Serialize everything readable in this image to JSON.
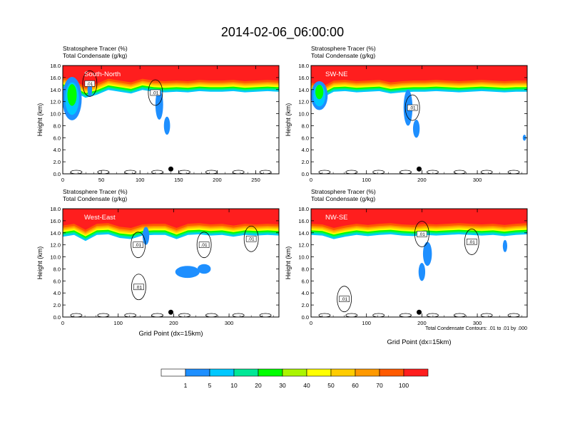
{
  "figure": {
    "title": "2014-02-06_06:00:00",
    "footnote": "Total Condensate Contours: .01 to .01 by .000"
  },
  "chart_data": [
    {
      "type": "heatmap",
      "panel_label": "South-North",
      "field_label": "Stratosphere Tracer   (%)",
      "contour_label": "Total Condensate   (g/kg)",
      "ylabel": "Height (km)",
      "xlabel": "",
      "xlim": [
        0,
        280
      ],
      "ylim": [
        0,
        18
      ],
      "xticks": [
        0,
        50,
        100,
        150,
        200,
        250
      ],
      "yticks": [
        "0.0",
        "2.0",
        "4.0",
        "6.0",
        "8.0",
        "10.0",
        "12.0",
        "14.0",
        "16.0",
        "18.0"
      ],
      "tracer_top_km": [
        16.0,
        15.5,
        14.5,
        15.0,
        15.8,
        15.5,
        15.2,
        15.8,
        15.5,
        15.4,
        15.5,
        15.4,
        15.6,
        15.5,
        15.5,
        15.6,
        15.4,
        15.5,
        15.6,
        15.5
      ],
      "tracer_blobs": [
        {
          "x": 12,
          "y": 12.5,
          "rx": 10,
          "ry": 3,
          "level": 20
        },
        {
          "x": 35,
          "y": 14.0,
          "rx": 3,
          "ry": 1.2,
          "level": 5
        },
        {
          "x": 125,
          "y": 11.5,
          "rx": 5,
          "ry": 2.5,
          "level": 5
        },
        {
          "x": 135,
          "y": 8.0,
          "rx": 4,
          "ry": 1.5,
          "level": 5
        }
      ],
      "contour_labels": [
        {
          "x": 35,
          "y": 15.0,
          "text": ".01"
        },
        {
          "x": 120,
          "y": 13.5,
          "text": ".01"
        }
      ],
      "marker_x": 140
    },
    {
      "type": "heatmap",
      "panel_label": "SW-NE",
      "field_label": "Stratosphere Tracer   (%)",
      "contour_label": "Total Condensate   (g/kg)",
      "ylabel": "Height (km)",
      "xlabel": "",
      "xlim": [
        0,
        390
      ],
      "ylim": [
        0,
        18
      ],
      "xticks": [
        0,
        100,
        200,
        300
      ],
      "yticks": [
        "0.0",
        "2.0",
        "4.0",
        "6.0",
        "8.0",
        "10.0",
        "12.0",
        "14.0",
        "16.0",
        "18.0"
      ],
      "tracer_top_km": [
        15.2,
        14.5,
        15.5,
        15.6,
        15.4,
        15.5,
        15.6,
        15.2,
        15.4,
        15.5,
        15.5,
        15.6,
        15.5,
        15.4,
        15.5,
        15.6,
        15.5,
        15.4,
        15.5,
        15.5
      ],
      "tracer_blobs": [
        {
          "x": 15,
          "y": 13.0,
          "rx": 12,
          "ry": 2,
          "level": 20
        },
        {
          "x": 175,
          "y": 11.0,
          "rx": 8,
          "ry": 3,
          "level": 5
        },
        {
          "x": 190,
          "y": 7.5,
          "rx": 6,
          "ry": 1.5,
          "level": 5
        },
        {
          "x": 385,
          "y": 6.0,
          "rx": 3,
          "ry": 0.5,
          "level": 5
        }
      ],
      "contour_labels": [
        {
          "x": 183,
          "y": 11.0,
          "text": ".01"
        }
      ],
      "marker_x": 195
    },
    {
      "type": "heatmap",
      "panel_label": "West-East",
      "field_label": "Stratosphere Tracer   (%)",
      "contour_label": "Total Condensate   (g/kg)",
      "ylabel": "Height (km)",
      "xlabel": "Grid Point (dx=15km)",
      "xlim": [
        0,
        390
      ],
      "ylim": [
        0,
        18
      ],
      "xticks": [
        0,
        100,
        200,
        300
      ],
      "yticks": [
        "0.0",
        "2.0",
        "4.0",
        "6.0",
        "8.0",
        "10.0",
        "12.0",
        "14.0",
        "16.0",
        "18.0"
      ],
      "tracer_top_km": [
        15.2,
        15.5,
        14.5,
        15.5,
        15.6,
        15.0,
        14.8,
        15.4,
        15.5,
        15.5,
        14.8,
        15.5,
        15.6,
        15.4,
        15.5,
        15.2,
        15.5,
        15.4,
        15.5,
        15.4
      ],
      "tracer_blobs": [
        {
          "x": 150,
          "y": 13.5,
          "rx": 6,
          "ry": 1.5,
          "level": 5
        },
        {
          "x": 225,
          "y": 7.5,
          "rx": 22,
          "ry": 1.0,
          "level": 5
        },
        {
          "x": 255,
          "y": 8.0,
          "rx": 12,
          "ry": 0.8,
          "level": 5
        }
      ],
      "contour_labels": [
        {
          "x": 136,
          "y": 12.0,
          "text": ".01"
        },
        {
          "x": 255,
          "y": 12.0,
          "text": ".01"
        },
        {
          "x": 340,
          "y": 13.0,
          "text": ".01"
        },
        {
          "x": 137,
          "y": 5.0,
          "text": ".01"
        }
      ],
      "marker_x": 195
    },
    {
      "type": "heatmap",
      "panel_label": "NW-SE",
      "field_label": "Stratosphere Tracer   (%)",
      "contour_label": "Total Condensate   (g/kg)",
      "ylabel": "Height (km)",
      "xlabel": "Grid Point (dx=15km)",
      "xlim": [
        0,
        390
      ],
      "ylim": [
        0,
        18
      ],
      "xticks": [
        0,
        100,
        200,
        300
      ],
      "yticks": [
        "0.0",
        "2.0",
        "4.0",
        "6.0",
        "8.0",
        "10.0",
        "12.0",
        "14.0",
        "16.0",
        "18.0"
      ],
      "tracer_top_km": [
        15.5,
        15.4,
        14.8,
        15.2,
        15.5,
        15.3,
        15.5,
        15.6,
        15.4,
        15.3,
        15.5,
        15.4,
        15.5,
        15.6,
        15.5,
        15.4,
        15.5,
        15.3,
        15.5,
        15.6
      ],
      "tracer_blobs": [
        {
          "x": 210,
          "y": 10.5,
          "rx": 8,
          "ry": 2,
          "level": 5
        },
        {
          "x": 200,
          "y": 7.5,
          "rx": 6,
          "ry": 1.5,
          "level": 5
        },
        {
          "x": 350,
          "y": 11.8,
          "rx": 4,
          "ry": 1,
          "level": 5
        }
      ],
      "contour_labels": [
        {
          "x": 200,
          "y": 13.8,
          "text": ".01"
        },
        {
          "x": 290,
          "y": 12.5,
          "text": ".01"
        },
        {
          "x": 60,
          "y": 3.0,
          "text": ".01"
        }
      ],
      "marker_x": 195
    }
  ],
  "colorbar": {
    "levels": [
      "1",
      "5",
      "10",
      "20",
      "30",
      "40",
      "50",
      "60",
      "70",
      "100"
    ],
    "colors": [
      "#ffffff",
      "#1e8fff",
      "#00c8ff",
      "#00e896",
      "#00ff00",
      "#aaf500",
      "#ffff00",
      "#ffcc00",
      "#ff9900",
      "#ff5a00",
      "#ff1e1e"
    ]
  },
  "contour_color": "#000000",
  "marker_color": "#000000"
}
